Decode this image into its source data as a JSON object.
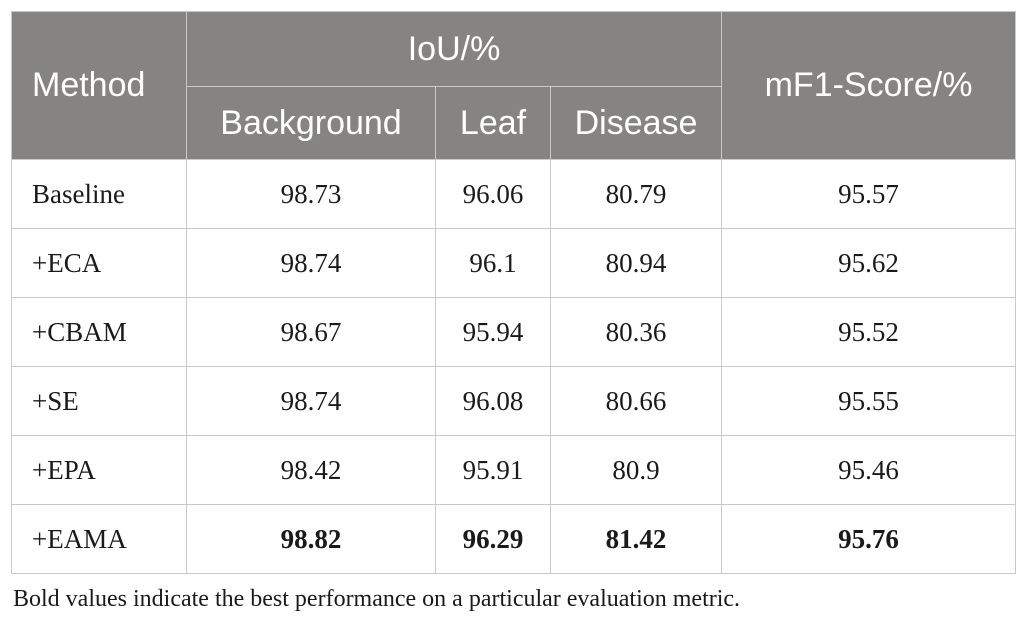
{
  "table": {
    "headers": {
      "method": "Method",
      "iou_group": "IoU/%",
      "background": "Background",
      "leaf": "Leaf",
      "disease": "Disease",
      "mf1": "mF1-Score/%"
    },
    "rows": [
      {
        "method": "Baseline",
        "background": "98.73",
        "leaf": "96.06",
        "disease": "80.79",
        "mf1": "95.57"
      },
      {
        "method": "+ECA",
        "background": "98.74",
        "leaf": "96.1",
        "disease": "80.94",
        "mf1": "95.62"
      },
      {
        "method": "+CBAM",
        "background": "98.67",
        "leaf": "95.94",
        "disease": "80.36",
        "mf1": "95.52"
      },
      {
        "method": "+SE",
        "background": "98.74",
        "leaf": "96.08",
        "disease": "80.66",
        "mf1": "95.55"
      },
      {
        "method": "+EPA",
        "background": "98.42",
        "leaf": "95.91",
        "disease": "80.9",
        "mf1": "95.46"
      },
      {
        "method": "+EAMA",
        "background": "98.82",
        "leaf": "96.29",
        "disease": "81.42",
        "mf1": "95.76"
      }
    ]
  },
  "footnote": "Bold values indicate the best performance on a particular evaluation metric.",
  "colors": {
    "header_bg": "#858482",
    "header_text": "#ffffff",
    "border": "#c9c9c9"
  }
}
